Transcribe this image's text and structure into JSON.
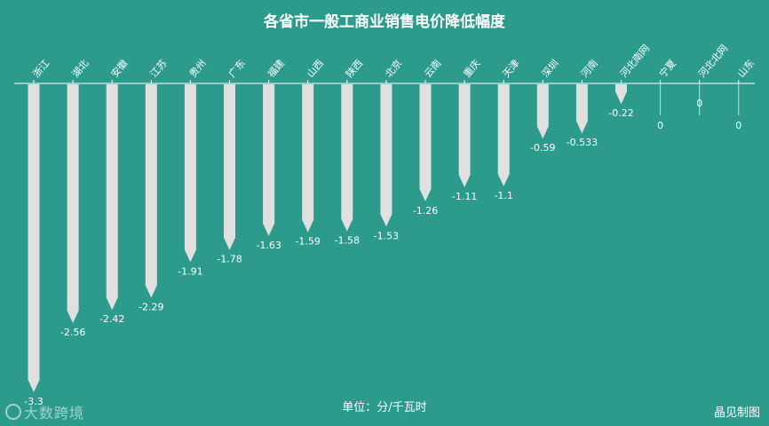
{
  "title": "各省市一般工商业销售电价降低幅度",
  "unit_label": "单位：分/千瓦时",
  "credit": "晶见制图",
  "watermark": "大数跨境",
  "colors": {
    "background": "#2c9b8c",
    "bar": "#e0e0e0",
    "axis": "#ffffff",
    "text": "#ffffff"
  },
  "chart_data": {
    "type": "bar",
    "title": "各省市一般工商业销售电价降低幅度",
    "ylabel": "单位：分/千瓦时",
    "categories": [
      "浙江",
      "湖北",
      "安徽",
      "江苏",
      "贵州",
      "广东",
      "福建",
      "山西",
      "陕西",
      "北京",
      "云南",
      "重庆",
      "天津",
      "深圳",
      "河南",
      "河北南网",
      "宁夏",
      "河北北网",
      "山东"
    ],
    "values": [
      -3.3,
      -2.56,
      -2.42,
      -2.29,
      -1.91,
      -1.78,
      -1.63,
      -1.59,
      -1.58,
      -1.53,
      -1.26,
      -1.11,
      -1.1,
      -0.59,
      -0.533,
      -0.22,
      0,
      0,
      0
    ],
    "value_labels": [
      "-3.3",
      "-2.56",
      "-2.42",
      "-2.29",
      "-1.91",
      "-1.78",
      "-1.63",
      "-1.59",
      "-1.58",
      "-1.53",
      "-1.26",
      "-1.11",
      "-1.1",
      "-0.59",
      "-0.533",
      "-0.22",
      "0",
      "0",
      "0"
    ],
    "ylim": [
      -3.3,
      0
    ],
    "grid": false,
    "legend": "none"
  }
}
